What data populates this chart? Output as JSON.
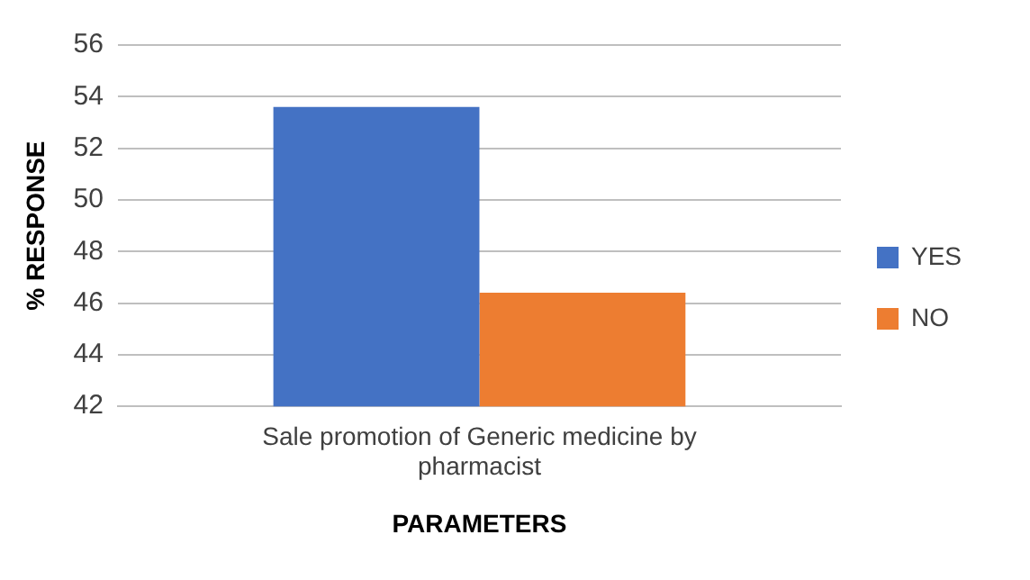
{
  "chart_data": {
    "type": "bar",
    "xlabel": "PARAMETERS",
    "ylabel": "% RESPONSE",
    "categories": [
      "Sale promotion of Generic medicine by pharmacist"
    ],
    "series": [
      {
        "name": "YES",
        "color": "#4472c4",
        "values": [
          53.6
        ]
      },
      {
        "name": "NO",
        "color": "#ed7d31",
        "values": [
          46.4
        ]
      }
    ],
    "ylim": [
      42,
      56
    ],
    "yticks": [
      42,
      44,
      46,
      48,
      50,
      52,
      54,
      56
    ],
    "grid": "y",
    "legend": "right"
  }
}
